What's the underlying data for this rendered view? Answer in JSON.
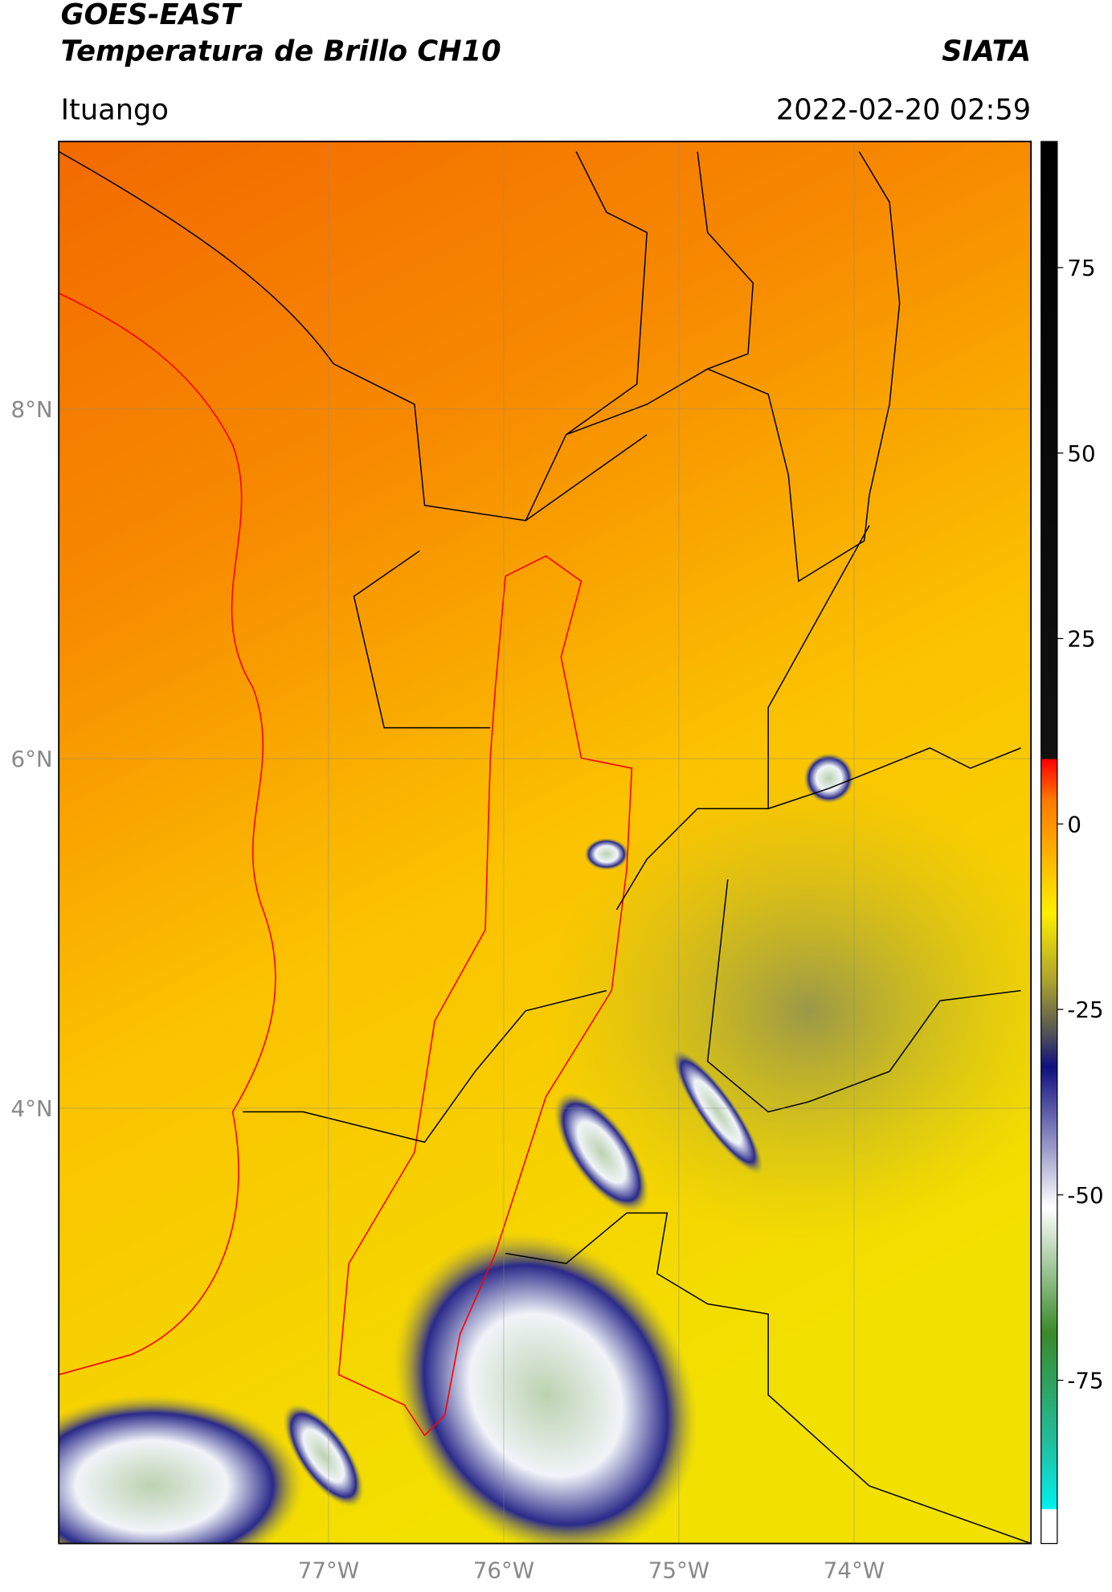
{
  "header": {
    "title": "GOES-EAST",
    "subtitle": "Temperatura de Brillo CH10",
    "source": "SIATA",
    "location": "Ituango",
    "datetime": "2022-02-20 02:59"
  },
  "map": {
    "xlim": [
      -78.54,
      -72.99
    ],
    "ylim": [
      1.51,
      9.53
    ],
    "xticks": [
      {
        "value": -77,
        "label": "77°W"
      },
      {
        "value": -76,
        "label": "76°W"
      },
      {
        "value": -75,
        "label": "75°W"
      },
      {
        "value": -74,
        "label": "74°W"
      }
    ],
    "yticks": [
      {
        "value": 8,
        "label": "8°N"
      },
      {
        "value": 6,
        "label": "6°N"
      },
      {
        "value": 4,
        "label": "4°N"
      }
    ]
  },
  "colorbar": {
    "lim": [
      -97,
      92
    ],
    "ticks": [
      75,
      50,
      25,
      0,
      -25,
      -50,
      -75
    ]
  }
}
